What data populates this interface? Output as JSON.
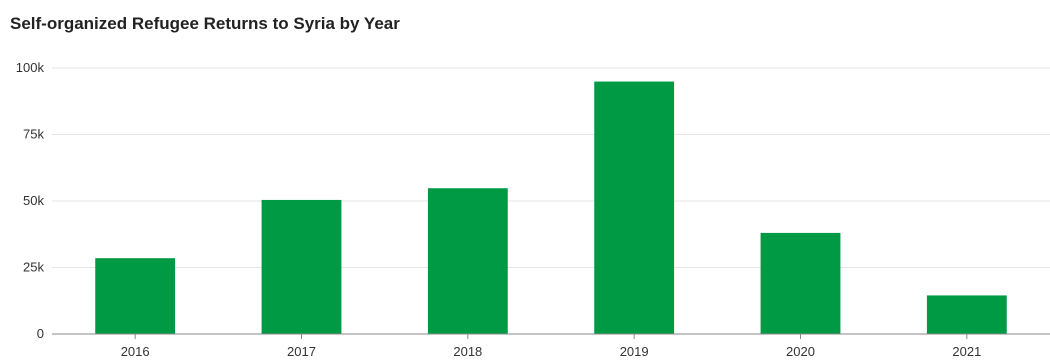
{
  "chart_data": {
    "type": "bar",
    "title": "Self-organized Refugee Returns to Syria by Year",
    "xlabel": "",
    "ylabel": "",
    "categories": [
      "2016",
      "2017",
      "2018",
      "2019",
      "2020",
      "2021"
    ],
    "values": [
      28500,
      50400,
      54800,
      94900,
      38000,
      14500
    ],
    "ylim": [
      0,
      100000
    ],
    "yticks": [
      0,
      25000,
      50000,
      75000,
      100000
    ],
    "ytick_labels": [
      "0",
      "25k",
      "50k",
      "75k",
      "100k"
    ],
    "grid": true,
    "legend": "none",
    "bar_color": "#009a44",
    "grid_color": "#e6e6e6",
    "axis_color": "#888888"
  }
}
